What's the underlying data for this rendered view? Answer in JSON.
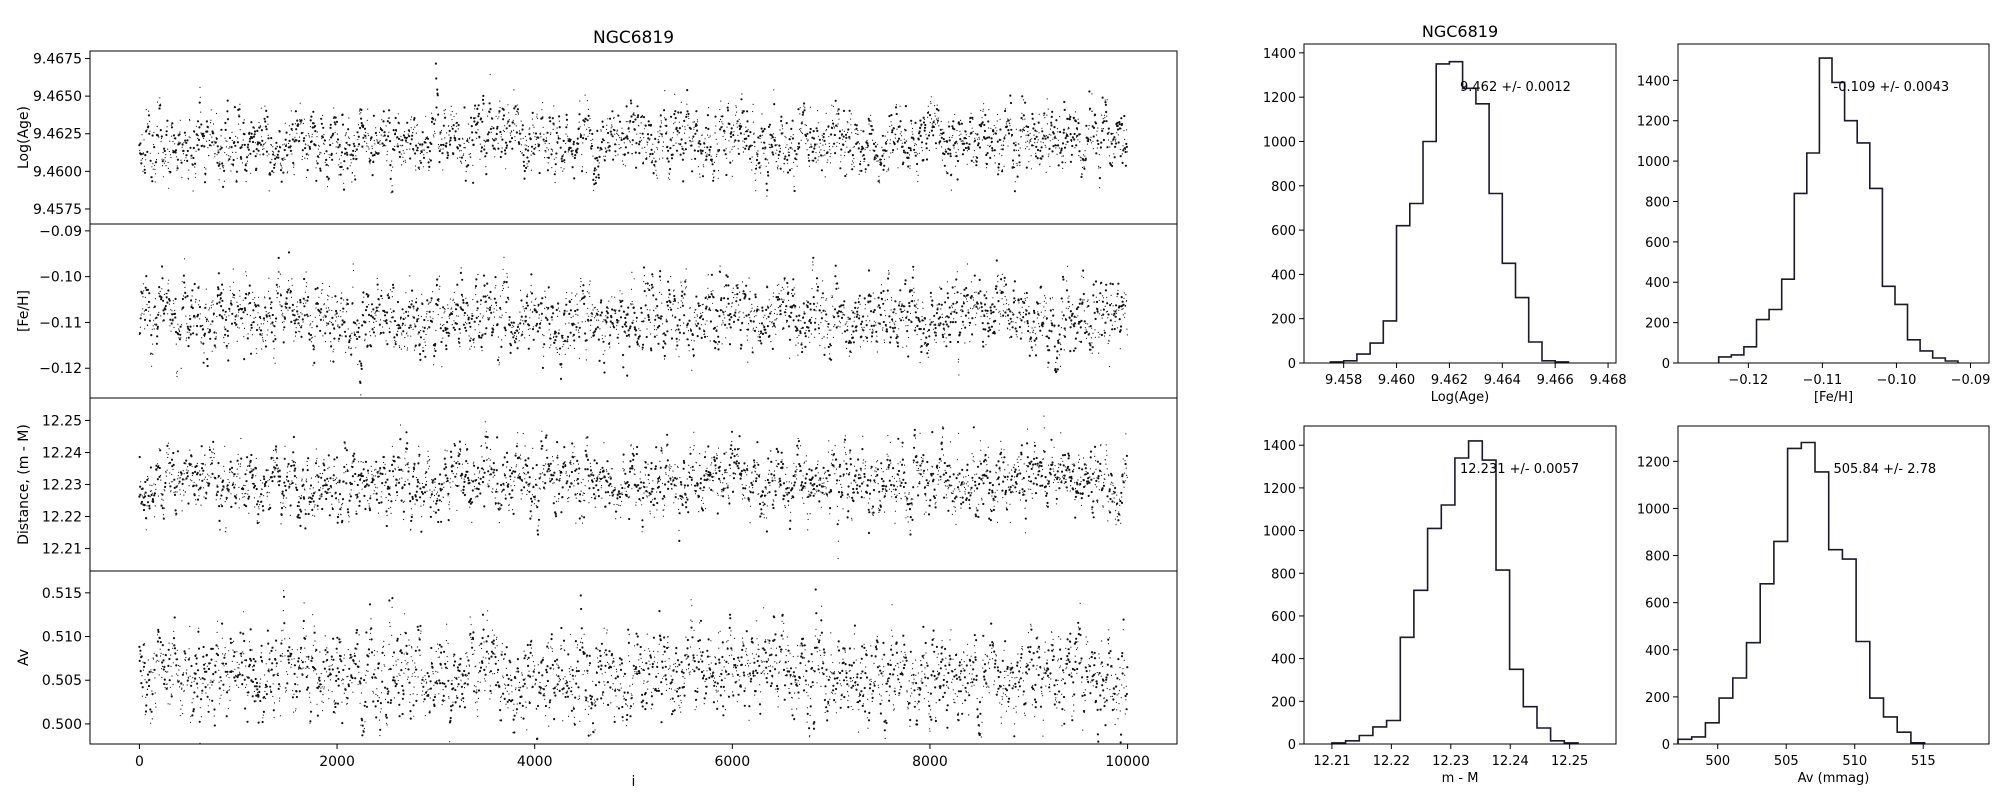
{
  "chart_data": [
    {
      "type": "scatter",
      "title": "NGC6819",
      "ylabel": "Log(Age)",
      "xlabel": "",
      "xlim": [
        -500,
        10500
      ],
      "ylim": [
        9.4565,
        9.468
      ],
      "xticks": [],
      "yticks": [
        "9.4575",
        "9.4600",
        "9.4625",
        "9.4650",
        "9.4675"
      ],
      "n_points": 10000,
      "center": 9.462,
      "spread": 0.0012,
      "seed": 11
    },
    {
      "type": "scatter",
      "title": "",
      "ylabel": "[Fe/H]",
      "xlabel": "",
      "xlim": [
        -500,
        10500
      ],
      "ylim": [
        -0.1265,
        -0.0885
      ],
      "xticks": [],
      "yticks": [
        "-0.12",
        "-0.11",
        "-0.10",
        "-0.09"
      ],
      "n_points": 10000,
      "center": -0.109,
      "spread": 0.0043,
      "seed": 23
    },
    {
      "type": "scatter",
      "title": "",
      "ylabel": "Distance, (m - M)",
      "xlabel": "",
      "xlim": [
        -500,
        10500
      ],
      "ylim": [
        12.203,
        12.257
      ],
      "xticks": [],
      "yticks": [
        "12.21",
        "12.22",
        "12.23",
        "12.24",
        "12.25"
      ],
      "n_points": 10000,
      "center": 12.231,
      "spread": 0.0057,
      "seed": 37
    },
    {
      "type": "scatter",
      "title": "",
      "ylabel": "Av",
      "xlabel": "i",
      "xlim": [
        -500,
        10500
      ],
      "ylim": [
        0.4977,
        0.5175
      ],
      "xticks": [
        "0",
        "2000",
        "4000",
        "6000",
        "8000",
        "10000"
      ],
      "yticks": [
        "0.500",
        "0.505",
        "0.510",
        "0.515"
      ],
      "n_points": 10000,
      "center": 0.5058,
      "spread": 0.0028,
      "seed": 53
    },
    {
      "type": "bar",
      "title": "NGC6819",
      "xlabel": "Log(Age)",
      "annotation": "9.462 +/- 0.0012",
      "xlim": [
        9.4565,
        9.4683
      ],
      "ylim": [
        0,
        1440
      ],
      "xticks": [
        "9.458",
        "9.460",
        "9.462",
        "9.464",
        "9.466",
        "9.468"
      ],
      "yticks": [
        "0",
        "200",
        "400",
        "600",
        "800",
        "1000",
        "1200",
        "1400"
      ],
      "bin_edges": [
        9.4575,
        9.458,
        9.4585,
        9.459,
        9.4595,
        9.46,
        9.4605,
        9.461,
        9.4615,
        9.462,
        9.4625,
        9.463,
        9.4635,
        9.464,
        9.4645,
        9.465,
        9.4655,
        9.466,
        9.4665
      ],
      "counts": [
        5,
        10,
        40,
        90,
        190,
        620,
        720,
        1000,
        1350,
        1360,
        1240,
        1170,
        765,
        450,
        295,
        95,
        10,
        5
      ]
    },
    {
      "type": "bar",
      "title": "",
      "xlabel": "[Fe/H]",
      "annotation": "-0.109 +/- 0.0043",
      "xlim": [
        -0.1295,
        -0.0875
      ],
      "ylim": [
        0,
        1580
      ],
      "xticks": [
        "-0.12",
        "-0.11",
        "-0.10",
        "-0.09"
      ],
      "yticks": [
        "0",
        "200",
        "400",
        "600",
        "800",
        "1000",
        "1200",
        "1400"
      ],
      "bin_edges": [
        -0.124,
        -0.1223,
        -0.1206,
        -0.1189,
        -0.1172,
        -0.1155,
        -0.1138,
        -0.1121,
        -0.1104,
        -0.1087,
        -0.107,
        -0.1053,
        -0.1036,
        -0.1019,
        -0.1002,
        -0.0985,
        -0.0968,
        -0.0951,
        -0.0934,
        -0.0917
      ],
      "counts": [
        30,
        40,
        80,
        215,
        265,
        415,
        840,
        1040,
        1510,
        1390,
        1200,
        1090,
        865,
        380,
        290,
        115,
        60,
        25,
        10
      ]
    },
    {
      "type": "bar",
      "title": "",
      "xlabel": "m - M",
      "annotation": "12.231 +/- 0.0057",
      "xlim": [
        12.2053,
        12.2578
      ],
      "ylim": [
        0,
        1490
      ],
      "xticks": [
        "12.21",
        "12.22",
        "12.23",
        "12.24",
        "12.25"
      ],
      "yticks": [
        "0",
        "200",
        "400",
        "600",
        "800",
        "1000",
        "1200",
        "1400"
      ],
      "bin_edges": [
        12.21,
        12.2123,
        12.2146,
        12.2169,
        12.2192,
        12.2215,
        12.2238,
        12.2261,
        12.2284,
        12.2307,
        12.233,
        12.2353,
        12.2376,
        12.2399,
        12.2422,
        12.2445,
        12.2468,
        12.2491,
        12.2514
      ],
      "counts": [
        5,
        15,
        40,
        80,
        110,
        500,
        720,
        1010,
        1120,
        1340,
        1420,
        1330,
        815,
        350,
        175,
        75,
        15,
        5
      ]
    },
    {
      "type": "bar",
      "title": "",
      "xlabel": "Av (mmag)",
      "annotation": "505.84 +/- 2.78",
      "xlim": [
        497.1,
        519.8
      ],
      "ylim": [
        0,
        1350
      ],
      "xticks": [
        "500",
        "505",
        "510",
        "515"
      ],
      "yticks": [
        "0",
        "200",
        "400",
        "600",
        "800",
        "1000",
        "1200"
      ],
      "bin_edges": [
        497.1,
        498.1,
        499.1,
        500.1,
        501.1,
        502.1,
        503.1,
        504.1,
        505.1,
        506.1,
        507.1,
        508.1,
        509.1,
        510.1,
        511.1,
        512.1,
        513.1,
        514.1,
        515.1
      ],
      "counts": [
        20,
        30,
        90,
        195,
        280,
        430,
        680,
        860,
        1255,
        1280,
        1155,
        825,
        785,
        435,
        195,
        115,
        50,
        5
      ]
    }
  ]
}
